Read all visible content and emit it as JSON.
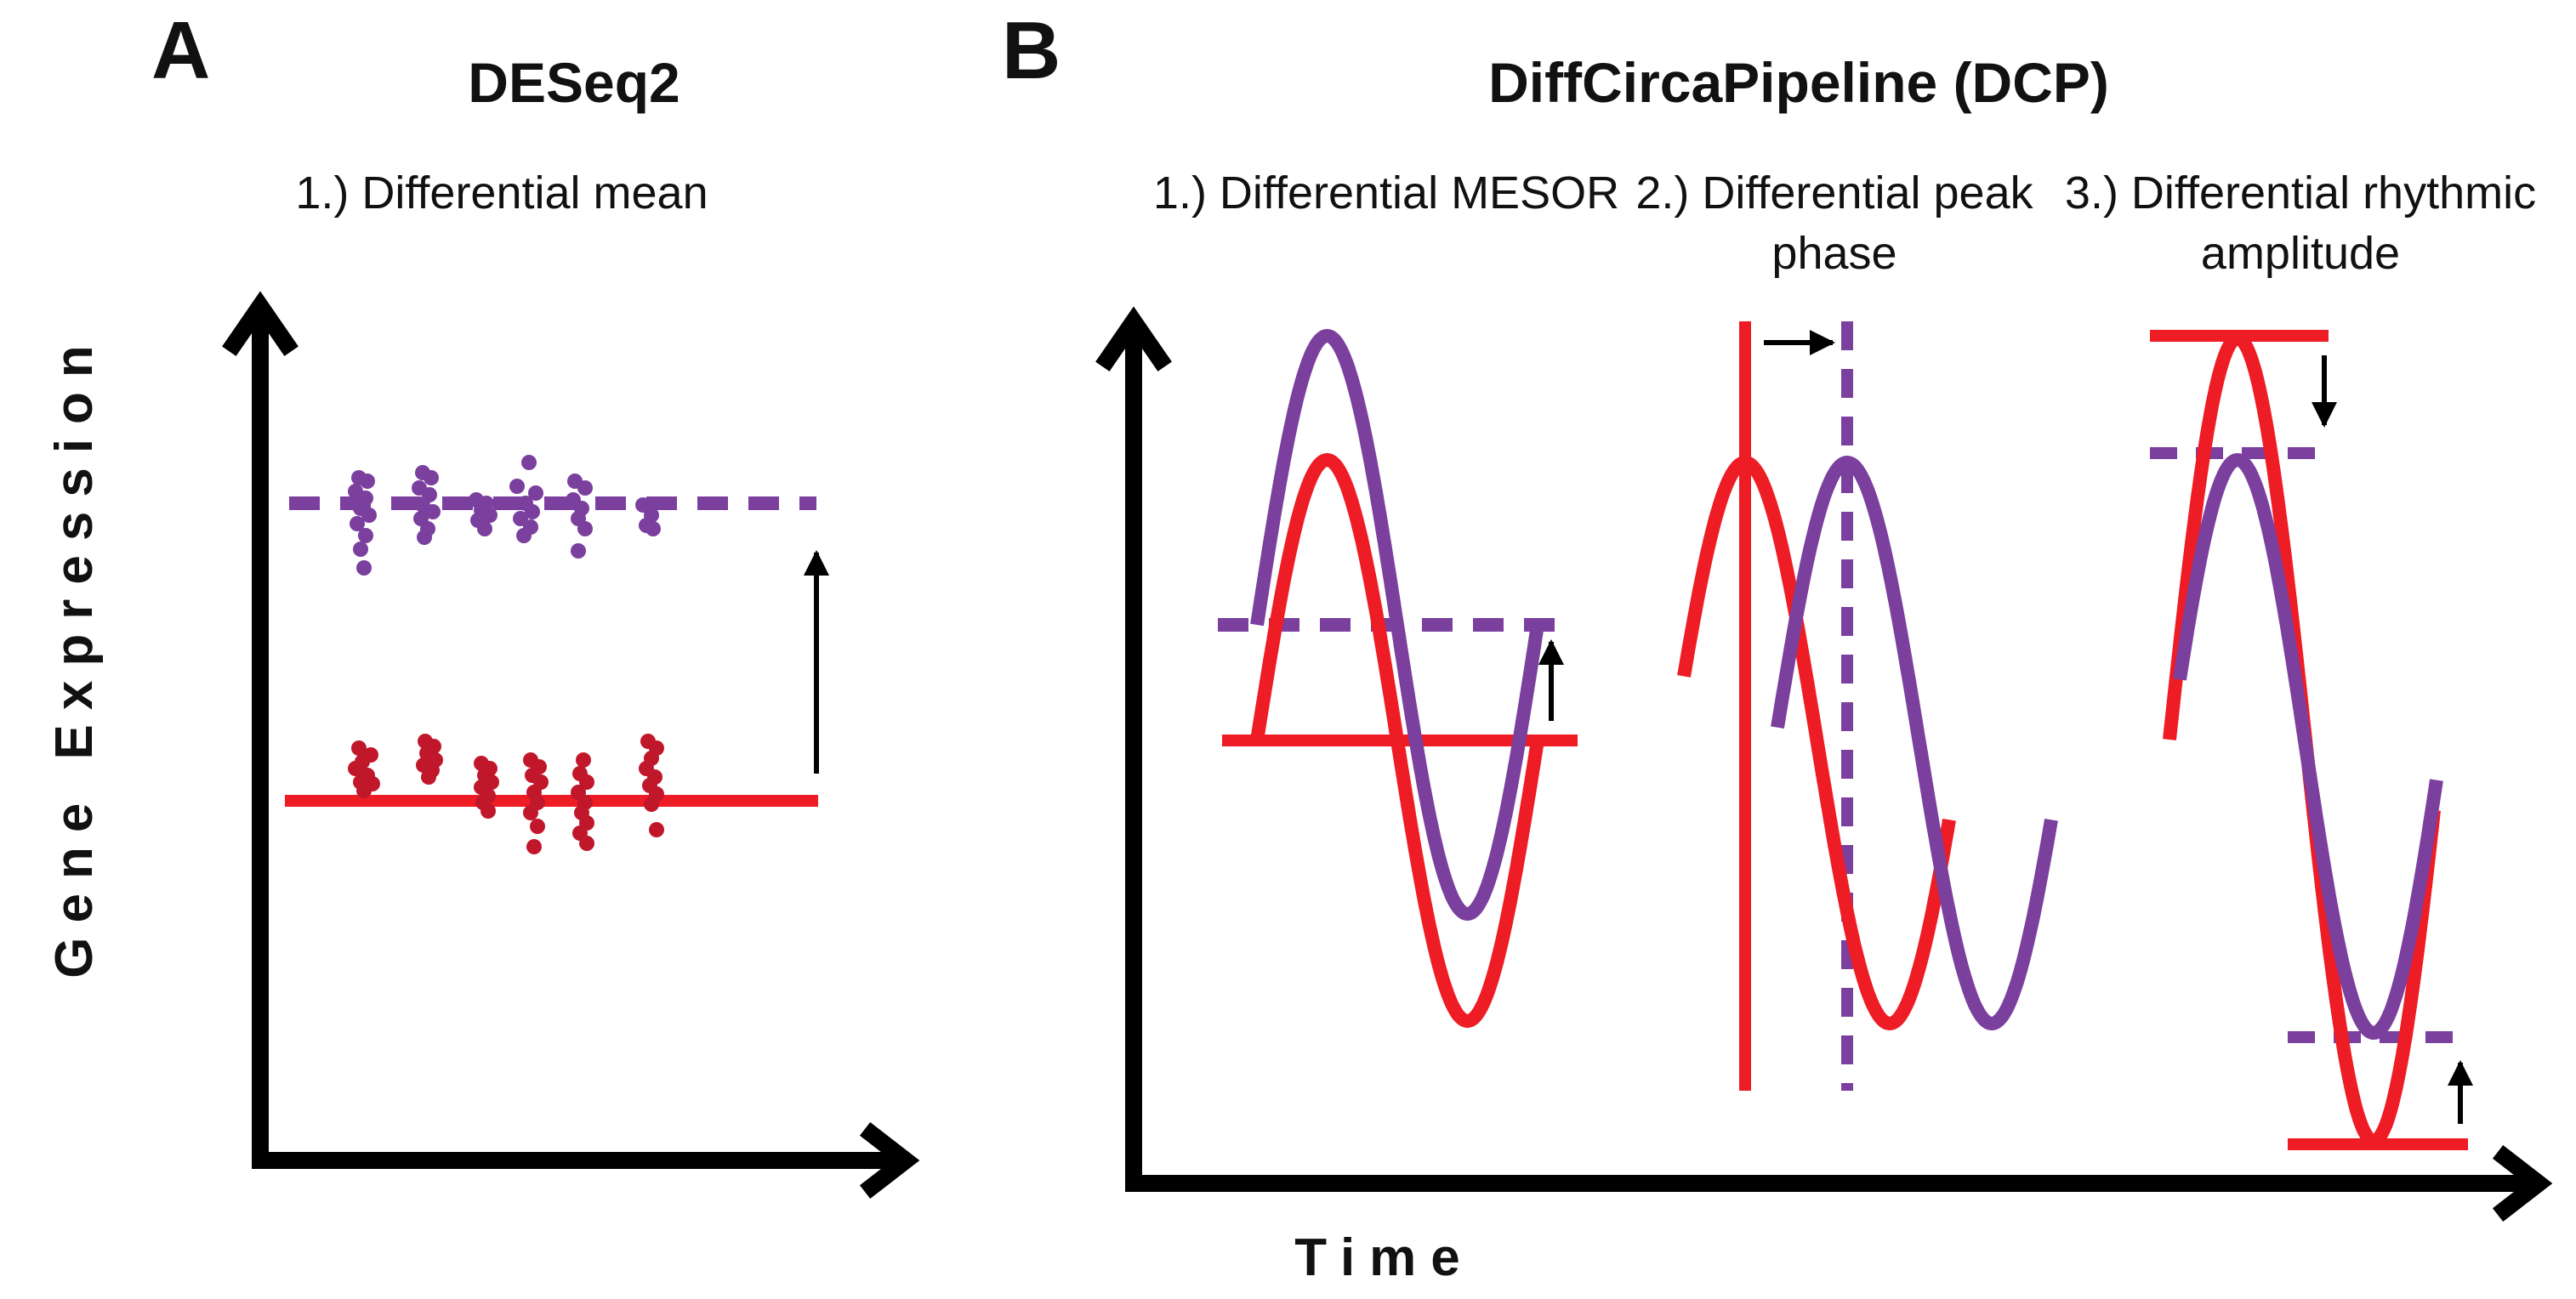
{
  "panels": {
    "a": {
      "letter": "A",
      "heading": "DESeq2",
      "item1": "1.) Differential mean"
    },
    "b": {
      "letter": "B",
      "heading": "DiffCircaPipeline (DCP)",
      "item1": "1.) Differential MESOR",
      "item2_line1": "2.) Differential peak",
      "item2_line2": "phase",
      "item3_line1": "3.) Differential rhythmic",
      "item3_line2": "amplitude"
    }
  },
  "axes": {
    "y_label": "Gene Expression",
    "x_label": "Time"
  },
  "colors": {
    "red": "#ee1c25",
    "dark_red": "#c0172b",
    "purple": "#7b3f9e",
    "black": "#000000"
  }
}
